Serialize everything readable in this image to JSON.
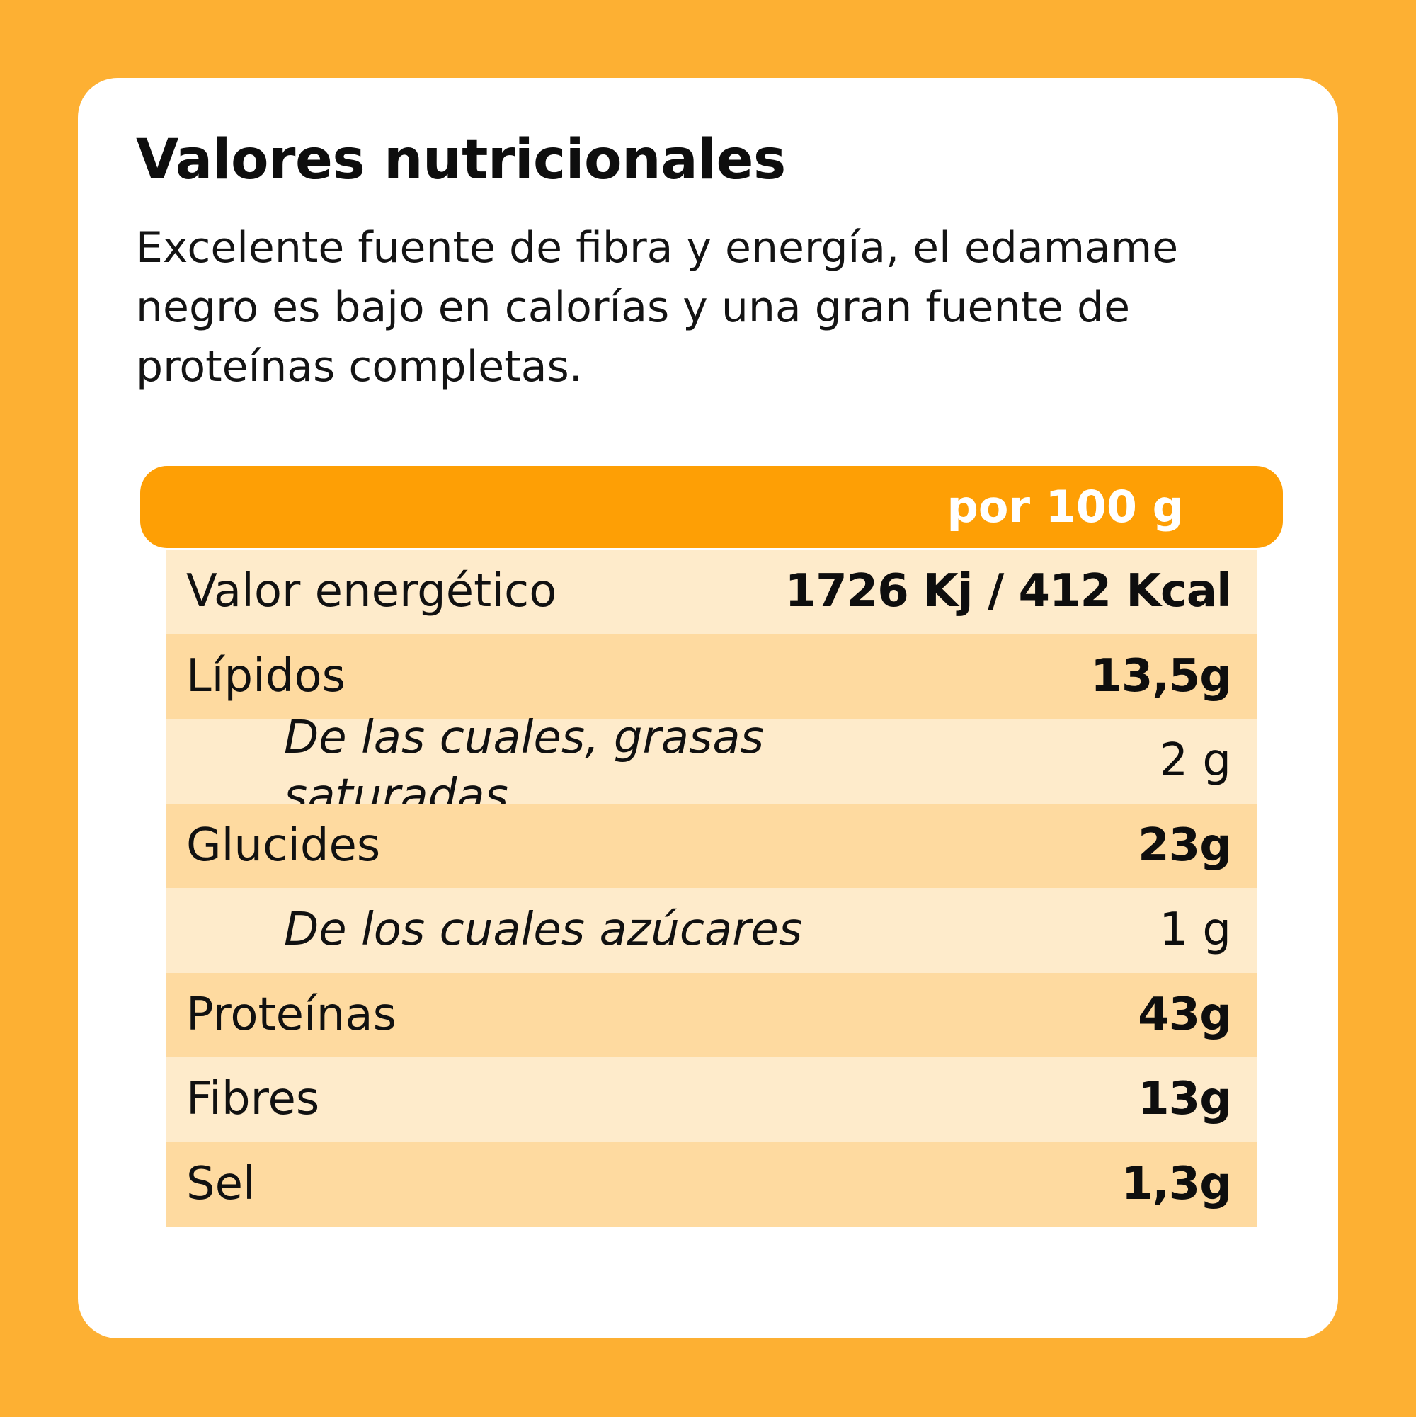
{
  "title": "Valores nutricionales",
  "description": "Excelente fuente de fibra y energía, el edamame negro es bajo en calorías y una gran fuente de proteínas completas.",
  "table": {
    "header": "por 100 g",
    "rows": [
      {
        "label": "Valor energético",
        "value": "1726 Kj / 412 Kcal"
      },
      {
        "label": "Lípidos",
        "value": "13,5g"
      },
      {
        "label": "De las cuales, grasas saturadas",
        "value": "2 g"
      },
      {
        "label": "Glucides",
        "value": "23g"
      },
      {
        "label": "De los cuales azúcares",
        "value": "1 g"
      },
      {
        "label": "Proteínas",
        "value": "43g"
      },
      {
        "label": "Fibres",
        "value": "13g"
      },
      {
        "label": "Sel",
        "value": "1,3g"
      }
    ]
  },
  "colors": {
    "background": "#FDB033",
    "card": "#FFFFFF",
    "header": "#FE9F05",
    "row_light": "#FEEBCB",
    "row_dark": "#FEDAA0"
  }
}
